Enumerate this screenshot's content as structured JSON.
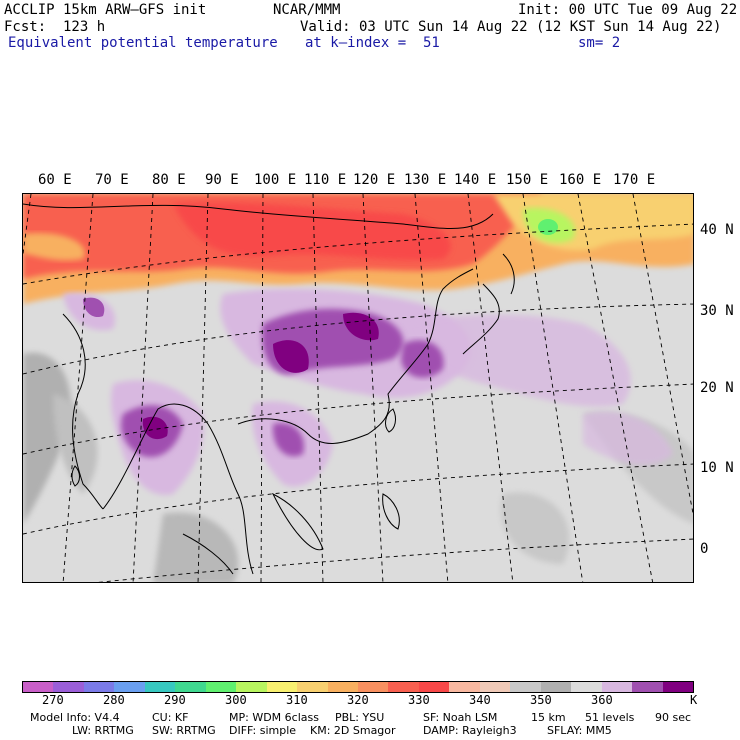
{
  "header": {
    "model": "ACCLIP 15km ARW–GFS init",
    "org": "NCAR/MMM",
    "init": "Init: 00 UTC Tue 09 Aug 22",
    "fcst": "Fcst:  123 h",
    "valid": "Valid: 03 UTC Sun 14 Aug 22 (12 KST Sun 14 Aug 22)",
    "field": "Equivalent potential temperature",
    "level": "at k–index =  51",
    "smooth": "sm= 2"
  },
  "map": {
    "lon_labels": [
      "60 E",
      "70 E",
      "80 E",
      "90 E",
      "100 E",
      "110 E",
      "120 E",
      "130 E",
      "140 E",
      "150 E",
      "160 E",
      "170 E"
    ],
    "lat_labels": [
      "40 N",
      "30 N",
      "20 N",
      "10 N",
      "0"
    ]
  },
  "colorbar": {
    "colors": [
      "#c95fc8",
      "#9b5fd8",
      "#7b7be8",
      "#6a9ff0",
      "#38c8c0",
      "#40d890",
      "#60f070",
      "#b8f560",
      "#f8f070",
      "#f8d070",
      "#f8b060",
      "#f89060",
      "#f86050",
      "#f84848",
      "#f8b8a0",
      "#f0cab8",
      "#c8c8c8",
      "#b0b0b0",
      "#dcdcdc",
      "#d8b8e0",
      "#a050b0",
      "#800080"
    ],
    "labels": [
      "270",
      "280",
      "290",
      "300",
      "310",
      "320",
      "330",
      "340",
      "350",
      "360",
      "K"
    ]
  },
  "footer": {
    "line1": [
      "Model Info: V4.4",
      "CU: KF",
      "MP: WDM 6class",
      "PBL: YSU",
      "SF: Noah LSM",
      "15 km",
      "51 levels",
      "90 sec"
    ],
    "line2": [
      "LW: RRTMG",
      "SW: RRTMG",
      "DIFF: simple",
      "KM: 2D Smagor",
      "DAMP: Rayleigh3",
      "SFLAY: MM5"
    ]
  }
}
